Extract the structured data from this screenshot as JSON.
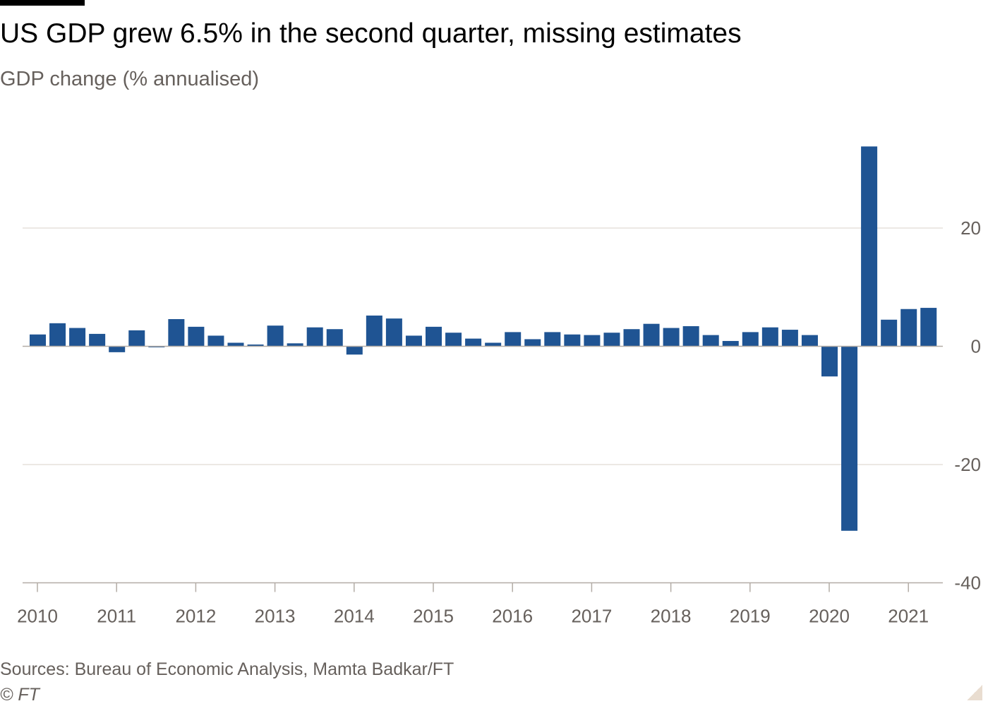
{
  "header": {
    "title": "US GDP grew 6.5% in the second quarter, missing estimates",
    "subtitle": "GDP change (% annualised)"
  },
  "footer": {
    "source": "Sources: Bureau of Economic Analysis, Mamta Badkar/FT",
    "credit": "© FT"
  },
  "colors": {
    "bar": "#1f5493",
    "grid": "#e6e1dc",
    "axis": "#b3aca6",
    "text": "#66605c"
  },
  "chart_data": {
    "type": "bar",
    "title": "US GDP grew 6.5% in the second quarter, missing estimates",
    "subtitle": "GDP change (% annualised)",
    "xlabel": "",
    "ylabel": "",
    "ylim": [
      -40,
      35
    ],
    "yticks": [
      20,
      0,
      -20,
      -40
    ],
    "ytick_labels": [
      "20",
      "0",
      "-20",
      "-40"
    ],
    "xtick_labels": [
      "2010",
      "2011",
      "2012",
      "2013",
      "2014",
      "2015",
      "2016",
      "2017",
      "2018",
      "2019",
      "2020",
      "2021"
    ],
    "grid": true,
    "categories": [
      "2010 Q1",
      "2010 Q2",
      "2010 Q3",
      "2010 Q4",
      "2011 Q1",
      "2011 Q2",
      "2011 Q3",
      "2011 Q4",
      "2012 Q1",
      "2012 Q2",
      "2012 Q3",
      "2012 Q4",
      "2013 Q1",
      "2013 Q2",
      "2013 Q3",
      "2013 Q4",
      "2014 Q1",
      "2014 Q2",
      "2014 Q3",
      "2014 Q4",
      "2015 Q1",
      "2015 Q2",
      "2015 Q3",
      "2015 Q4",
      "2016 Q1",
      "2016 Q2",
      "2016 Q3",
      "2016 Q4",
      "2017 Q1",
      "2017 Q2",
      "2017 Q3",
      "2017 Q4",
      "2018 Q1",
      "2018 Q2",
      "2018 Q3",
      "2018 Q4",
      "2019 Q1",
      "2019 Q2",
      "2019 Q3",
      "2019 Q4",
      "2020 Q1",
      "2020 Q2",
      "2020 Q3",
      "2020 Q4",
      "2021 Q1",
      "2021 Q2"
    ],
    "values": [
      2.0,
      3.9,
      3.1,
      2.1,
      -1.0,
      2.7,
      -0.1,
      4.6,
      3.3,
      1.8,
      0.6,
      0.3,
      3.5,
      0.5,
      3.2,
      2.9,
      -1.4,
      5.2,
      4.7,
      1.8,
      3.3,
      2.3,
      1.3,
      0.6,
      2.4,
      1.2,
      2.4,
      2.0,
      1.9,
      2.3,
      2.9,
      3.8,
      3.1,
      3.4,
      1.9,
      0.9,
      2.4,
      3.2,
      2.8,
      1.9,
      -5.1,
      -31.2,
      33.8,
      4.5,
      6.3,
      6.5
    ]
  }
}
